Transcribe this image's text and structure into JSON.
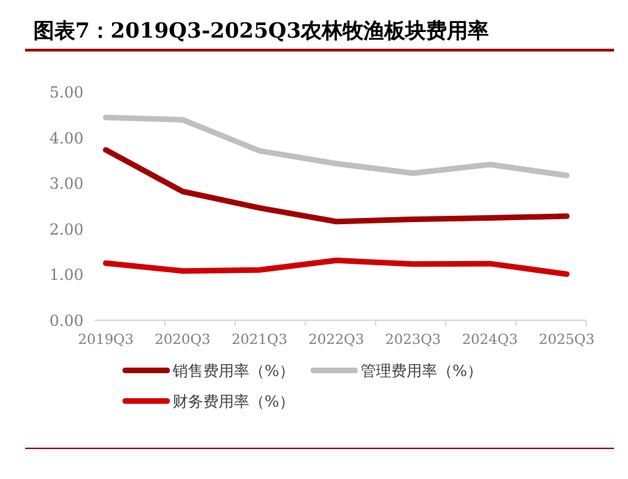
{
  "chart_data": {
    "type": "line",
    "title": "图表7：2019Q3-2025Q3农林牧渔板块费用率",
    "categories": [
      "2019Q3",
      "2020Q3",
      "2021Q3",
      "2022Q3",
      "2023Q3",
      "2024Q3",
      "2025Q3"
    ],
    "series": [
      {
        "name": "销售费用率（%）",
        "color": "#a00000",
        "values": [
          3.73,
          2.82,
          2.46,
          2.16,
          2.21,
          2.24,
          2.28
        ]
      },
      {
        "name": "管理费用率（%）",
        "color": "#bfbfbf",
        "values": [
          4.44,
          4.39,
          3.71,
          3.43,
          3.22,
          3.41,
          3.17
        ]
      },
      {
        "name": "财务费用率（%）",
        "color": "#d00000",
        "values": [
          1.25,
          1.08,
          1.1,
          1.31,
          1.23,
          1.24,
          1.01
        ]
      }
    ],
    "ylim": [
      0,
      5
    ],
    "yticks": [
      {
        "value": 0,
        "label": "0.00"
      },
      {
        "value": 1,
        "label": "1.00"
      },
      {
        "value": 2,
        "label": "2.00"
      },
      {
        "value": 3,
        "label": "3.00"
      },
      {
        "value": 4,
        "label": "4.00"
      },
      {
        "value": 5,
        "label": "5.00"
      }
    ],
    "grid": false,
    "legend": "bottom",
    "marker": "none",
    "line_style": "solid"
  }
}
